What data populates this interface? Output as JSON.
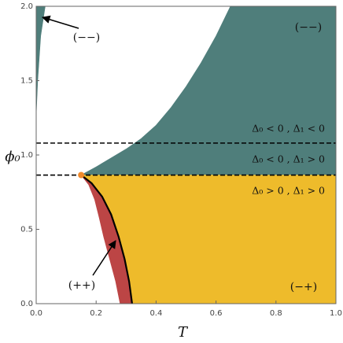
{
  "chart_data": {
    "type": "region",
    "xlabel": "T",
    "ylabel": "ϕ₀",
    "xlim": [
      0,
      1
    ],
    "ylim": [
      0,
      2
    ],
    "xticks": [
      {
        "value": 0,
        "label": "0.0"
      },
      0.2,
      0.4,
      0.6,
      0.8,
      {
        "value": 1,
        "label": "1.0"
      }
    ],
    "yticks": [
      {
        "value": 0,
        "label": "0.0"
      },
      0.5,
      {
        "value": 1,
        "label": "1.0"
      },
      1.5,
      {
        "value": 2,
        "label": "2.0"
      }
    ],
    "regions": [
      {
        "color": "#4f7e7b",
        "x": [
          0.15,
          0.2,
          0.25,
          0.3,
          0.35,
          0.4,
          0.45,
          0.5,
          0.55,
          0.6,
          0.648,
          1,
          1
        ],
        "y": [
          0.865,
          0.92,
          0.98,
          1.04,
          1.11,
          1.2,
          1.32,
          1.46,
          1.62,
          1.8,
          2,
          2,
          0.865
        ]
      },
      {
        "color": "#4f7e7b",
        "x": [
          0,
          0.005,
          0.015,
          0.03,
          0
        ],
        "y": [
          1.27,
          1.5,
          1.8,
          2,
          2
        ]
      },
      {
        "color": "#eebb2b",
        "x": [
          0.15,
          1,
          1,
          0.32,
          0.31,
          0.295,
          0.275,
          0.25,
          0.22,
          0.185
        ],
        "y": [
          0.865,
          0.865,
          0,
          0,
          0.15,
          0.3,
          0.45,
          0.6,
          0.72,
          0.81
        ]
      },
      {
        "color": "#bc4545",
        "x": [
          0.15,
          0.175,
          0.195,
          0.21,
          0.225,
          0.245,
          0.265,
          0.28,
          0.32,
          0.31,
          0.295,
          0.275,
          0.25,
          0.22,
          0.185
        ],
        "y": [
          0.865,
          0.8,
          0.7,
          0.58,
          0.45,
          0.3,
          0.15,
          0,
          0,
          0.15,
          0.3,
          0.45,
          0.6,
          0.72,
          0.81
        ]
      }
    ],
    "boundary": {
      "color": "#000000",
      "x": [
        0.15,
        0.185,
        0.22,
        0.25,
        0.275,
        0.295,
        0.31,
        0.32
      ],
      "y": [
        0.865,
        0.81,
        0.72,
        0.6,
        0.45,
        0.3,
        0.15,
        0
      ]
    },
    "hlines": [
      1.08,
      0.865
    ],
    "point": {
      "x": 0.15,
      "y": 0.865,
      "color": "#f08a2c"
    },
    "annotations": [
      "(−−)",
      "(−−)",
      "(++)",
      "(−+)",
      "Δ₀ < 0 , Δ₁ < 0",
      "Δ₀ < 0 , Δ₁ > 0",
      "Δ₀ > 0 , Δ₁ > 0"
    ]
  }
}
